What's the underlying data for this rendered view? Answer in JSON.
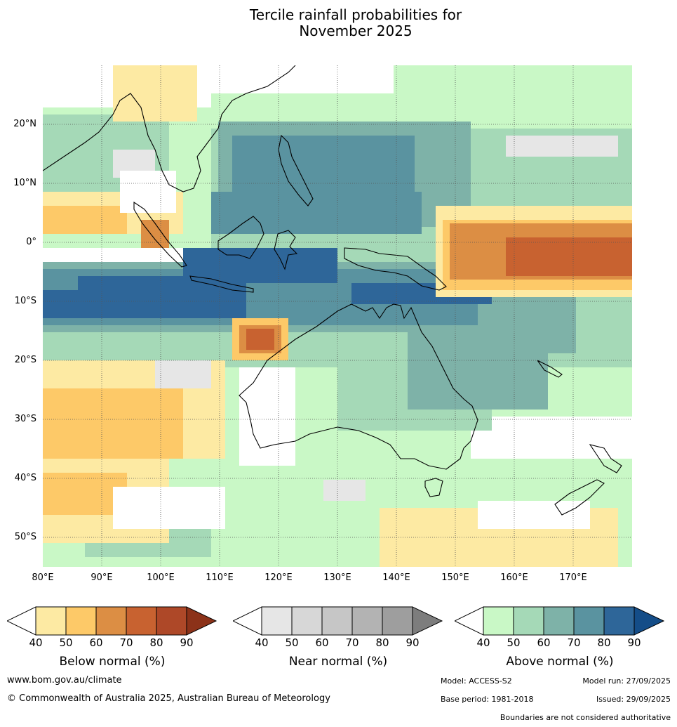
{
  "title_line1": "Tercile rainfall probabilities for",
  "title_line2": "November 2025",
  "map": {
    "lon_labels": [
      "80°E",
      "90°E",
      "100°E",
      "110°E",
      "120°E",
      "130°E",
      "140°E",
      "150°E",
      "160°E",
      "170°E"
    ],
    "lat_labels": [
      "20°N",
      "10°N",
      "0°",
      "10°S",
      "20°S",
      "30°S",
      "40°S",
      "50°S"
    ],
    "lon_range": [
      80,
      180
    ],
    "lat_range": [
      -55,
      30
    ]
  },
  "colorbars": {
    "below": {
      "label": "Below normal (%)",
      "ticks": [
        "40",
        "50",
        "60",
        "70",
        "80",
        "90"
      ],
      "colors": [
        "#ffffff",
        "#fdeaa3",
        "#fdc968",
        "#dc8e44",
        "#c86230",
        "#ae4828",
        "#8c3219"
      ]
    },
    "near": {
      "label": "Near normal (%)",
      "ticks": [
        "40",
        "50",
        "60",
        "70",
        "80",
        "90"
      ],
      "colors": [
        "#ffffff",
        "#e6e6e6",
        "#d7d7d7",
        "#c6c6c6",
        "#b3b3b3",
        "#9e9e9e",
        "#7d7d7d"
      ]
    },
    "above": {
      "label": "Above normal (%)",
      "ticks": [
        "40",
        "50",
        "60",
        "70",
        "80",
        "90"
      ],
      "colors": [
        "#ffffff",
        "#c9f8c6",
        "#a5d9b7",
        "#7eb2a8",
        "#5a93a0",
        "#2e6699",
        "#144d88"
      ]
    }
  },
  "footer": {
    "url": "www.bom.gov.au/climate",
    "copyright": "© Commonwealth of Australia 2025, Australian Bureau of Meteorology",
    "model": "Model: ACCESS-S2",
    "model_run": "Model run: 27/09/2025",
    "base_period": "Base period: 1981-2018",
    "issued": "Issued: 29/09/2025",
    "boundaries": "Boundaries are not considered authoritative"
  }
}
